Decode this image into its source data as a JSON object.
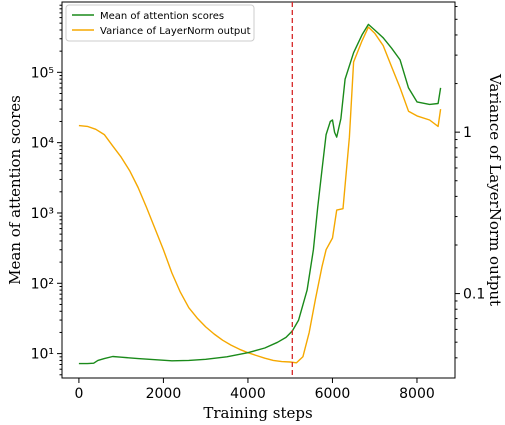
{
  "chart_data": {
    "type": "line",
    "xlabel": "Training steps",
    "ylabel_left": "Mean of attention scores",
    "ylabel_right": "Variance of LayerNorm output",
    "xlim": [
      -400,
      8900
    ],
    "x_ticks": [
      0,
      2000,
      4000,
      6000,
      8000
    ],
    "x_tick_labels": [
      "0",
      "2000",
      "4000",
      "6000",
      "8000"
    ],
    "left_axis": {
      "scale": "log",
      "ylim": [
        4.5,
        1000000
      ],
      "ticks": [
        10,
        100,
        1000,
        10000,
        100000
      ],
      "tick_labels": [
        "10¹",
        "10²",
        "10³",
        "10⁴",
        "10⁵"
      ]
    },
    "right_axis": {
      "scale": "log",
      "ylim": [
        0.03,
        6.4
      ],
      "ticks": [
        0.1,
        1
      ],
      "tick_labels": [
        "0.1",
        "1"
      ]
    },
    "vline": {
      "x": 5050,
      "color": "#d62728"
    },
    "legend": {
      "position": "top-left"
    },
    "series": [
      {
        "name": "Mean of attention scores",
        "axis": "left",
        "color": "#1a8a1a",
        "points": [
          [
            0,
            7.2
          ],
          [
            200,
            7.2
          ],
          [
            350,
            7.3
          ],
          [
            450,
            8.0
          ],
          [
            600,
            8.5
          ],
          [
            800,
            9.1
          ],
          [
            1000,
            8.9
          ],
          [
            1400,
            8.5
          ],
          [
            1800,
            8.2
          ],
          [
            2200,
            7.9
          ],
          [
            2600,
            8.0
          ],
          [
            3000,
            8.3
          ],
          [
            3500,
            9.0
          ],
          [
            4000,
            10.3
          ],
          [
            4400,
            12
          ],
          [
            4700,
            14.5
          ],
          [
            4900,
            17
          ],
          [
            5050,
            21
          ],
          [
            5200,
            30
          ],
          [
            5400,
            80
          ],
          [
            5550,
            300
          ],
          [
            5650,
            1200
          ],
          [
            5750,
            4000
          ],
          [
            5850,
            13000
          ],
          [
            5950,
            20000
          ],
          [
            6000,
            21000
          ],
          [
            6050,
            14000
          ],
          [
            6100,
            12000
          ],
          [
            6200,
            22000
          ],
          [
            6300,
            80000
          ],
          [
            6500,
            190000
          ],
          [
            6700,
            340000
          ],
          [
            6850,
            480000
          ],
          [
            7000,
            400000
          ],
          [
            7200,
            310000
          ],
          [
            7400,
            220000
          ],
          [
            7600,
            150000
          ],
          [
            7800,
            60000
          ],
          [
            8000,
            38000
          ],
          [
            8300,
            35000
          ],
          [
            8500,
            36000
          ],
          [
            8560,
            60000
          ]
        ]
      },
      {
        "name": "Variance of LayerNorm output",
        "axis": "left",
        "color": "#f5a800",
        "points": [
          [
            0,
            17500
          ],
          [
            200,
            17000
          ],
          [
            400,
            15500
          ],
          [
            600,
            13000
          ],
          [
            800,
            9000
          ],
          [
            1000,
            6200
          ],
          [
            1200,
            4000
          ],
          [
            1400,
            2300
          ],
          [
            1600,
            1200
          ],
          [
            1800,
            600
          ],
          [
            2000,
            300
          ],
          [
            2200,
            140
          ],
          [
            2400,
            75
          ],
          [
            2600,
            45
          ],
          [
            2800,
            32
          ],
          [
            3000,
            24
          ],
          [
            3200,
            19
          ],
          [
            3400,
            15.5
          ],
          [
            3600,
            13.2
          ],
          [
            3800,
            11.5
          ],
          [
            4000,
            10.3
          ],
          [
            4200,
            9.4
          ],
          [
            4400,
            8.6
          ],
          [
            4600,
            8.0
          ],
          [
            4800,
            7.7
          ],
          [
            5000,
            7.6
          ],
          [
            5150,
            7.4
          ],
          [
            5300,
            9
          ],
          [
            5450,
            20
          ],
          [
            5600,
            60
          ],
          [
            5750,
            170
          ],
          [
            5850,
            300
          ],
          [
            6000,
            440
          ],
          [
            6100,
            1100
          ],
          [
            6250,
            1150
          ],
          [
            6400,
            12000
          ],
          [
            6500,
            140000
          ],
          [
            6700,
            280000
          ],
          [
            6850,
            440000
          ],
          [
            7000,
            360000
          ],
          [
            7200,
            240000
          ],
          [
            7400,
            120000
          ],
          [
            7600,
            60000
          ],
          [
            7800,
            28000
          ],
          [
            8000,
            24000
          ],
          [
            8300,
            21000
          ],
          [
            8500,
            17000
          ],
          [
            8560,
            30000
          ]
        ]
      }
    ]
  }
}
